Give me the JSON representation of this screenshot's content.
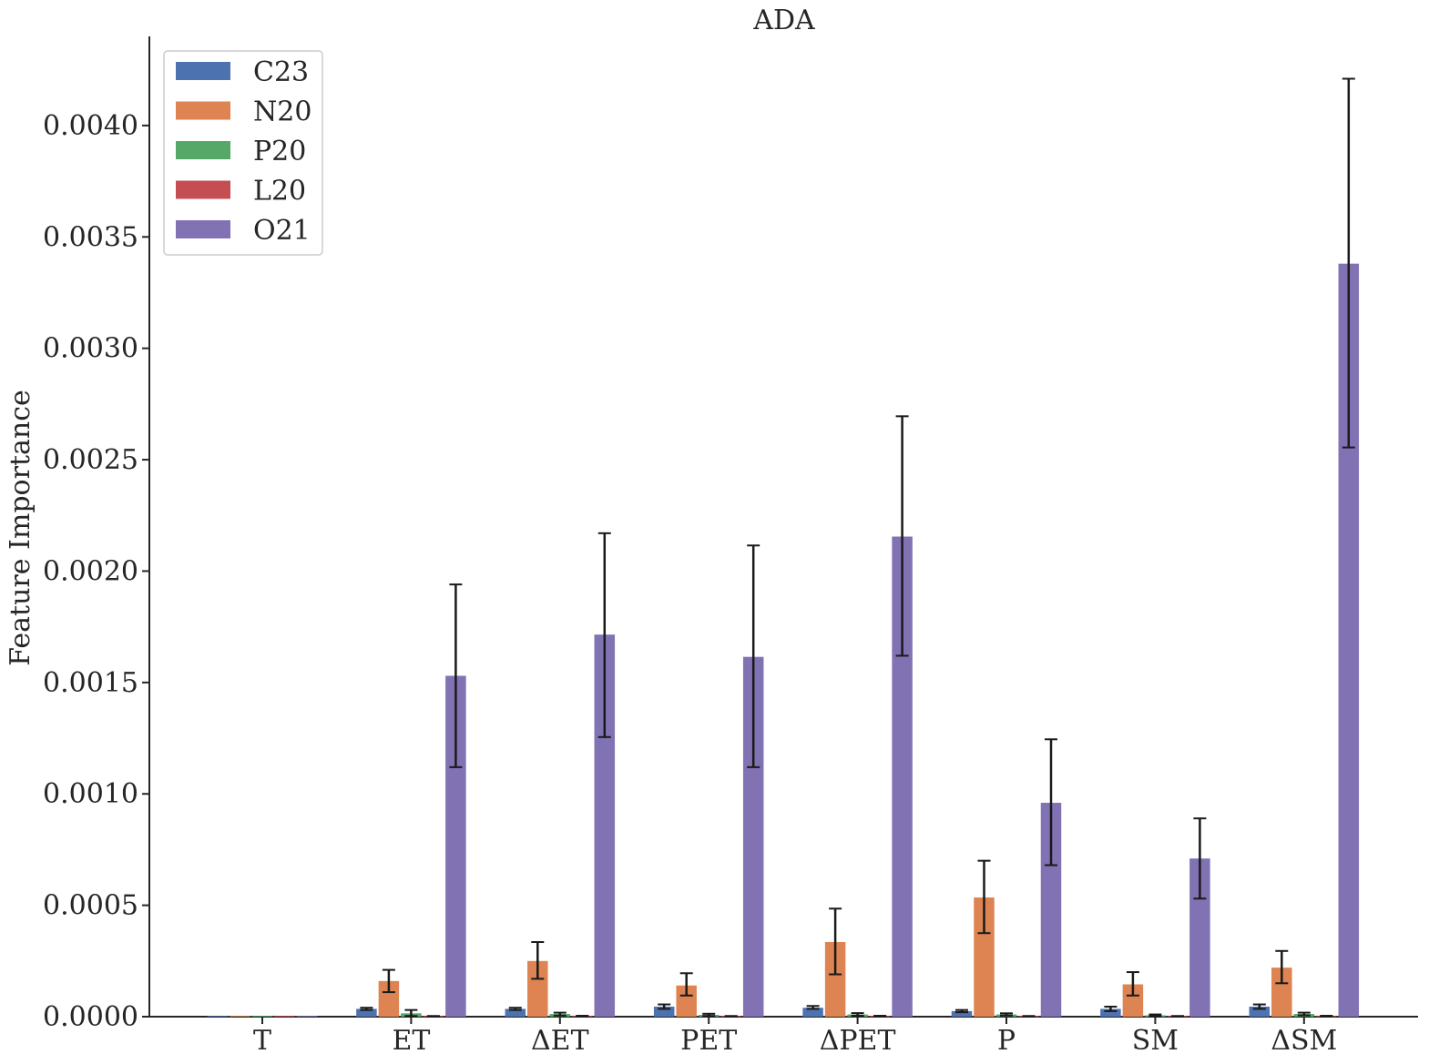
{
  "chart_data": {
    "type": "bar",
    "title": "ADA",
    "xlabel": "",
    "ylabel": "Feature Importance",
    "categories": [
      "T",
      "ET",
      "ΔET",
      "PET",
      "ΔPET",
      "P",
      "SM",
      "ΔSM"
    ],
    "ylim": [
      0,
      0.0044
    ],
    "yticks": [
      0.0,
      0.0005,
      0.001,
      0.0015,
      0.002,
      0.0025,
      0.003,
      0.0035,
      0.004
    ],
    "ytick_labels": [
      "0.0000",
      "0.0005",
      "0.0010",
      "0.0015",
      "0.0020",
      "0.0025",
      "0.0030",
      "0.0035",
      "0.0040"
    ],
    "grid": false,
    "legend_position": "top-left",
    "series": [
      {
        "name": "C23",
        "color": "#4c72b0",
        "values": [
          0.0,
          3.5e-05,
          3.5e-05,
          4.5e-05,
          4e-05,
          2.5e-05,
          3.5e-05,
          4.5e-05
        ],
        "err_low": [
          0.0,
          3e-05,
          3e-05,
          3.5e-05,
          3.5e-05,
          2e-05,
          2.5e-05,
          3.5e-05
        ],
        "err_high": [
          0.0,
          4e-05,
          4e-05,
          5.5e-05,
          4.8e-05,
          3e-05,
          4.5e-05,
          5.5e-05
        ]
      },
      {
        "name": "N20",
        "color": "#dd8452",
        "values": [
          0.0,
          0.00016,
          0.00025,
          0.00014,
          0.000335,
          0.000535,
          0.000145,
          0.00022
        ],
        "err_low": [
          0.0,
          0.00011,
          0.00017,
          9.5e-05,
          0.00019,
          0.000375,
          9.5e-05,
          0.00015
        ],
        "err_high": [
          0.0,
          0.00021,
          0.000335,
          0.000195,
          0.000485,
          0.0007,
          0.0002,
          0.000295
        ]
      },
      {
        "name": "P20",
        "color": "#55a868",
        "values": [
          0.0,
          1.5e-05,
          1.2e-05,
          8e-06,
          1e-05,
          1e-05,
          6e-06,
          1.2e-05
        ],
        "err_low": [
          0.0,
          3e-06,
          5e-06,
          3e-06,
          4e-06,
          5e-06,
          2e-06,
          6e-06
        ],
        "err_high": [
          0.0,
          3e-05,
          1.8e-05,
          1.3e-05,
          1.6e-05,
          1.5e-05,
          1e-05,
          1.8e-05
        ]
      },
      {
        "name": "L20",
        "color": "#c44e52",
        "values": [
          0.0,
          2e-06,
          3e-06,
          2e-06,
          3e-06,
          2e-06,
          2e-06,
          3e-06
        ],
        "err_low": [
          0.0,
          1e-06,
          2e-06,
          1e-06,
          2e-06,
          1e-06,
          1e-06,
          2e-06
        ],
        "err_high": [
          0.0,
          3e-06,
          4e-06,
          3e-06,
          4e-06,
          3e-06,
          3e-06,
          4e-06
        ]
      },
      {
        "name": "O21",
        "color": "#8172b3",
        "values": [
          0.0,
          0.00153,
          0.001715,
          0.001615,
          0.002155,
          0.00096,
          0.00071,
          0.00338
        ],
        "err_low": [
          0.0,
          0.00112,
          0.001255,
          0.00112,
          0.00162,
          0.00068,
          0.00053,
          0.002555
        ],
        "err_high": [
          0.0,
          0.00194,
          0.00217,
          0.002115,
          0.002695,
          0.001245,
          0.00089,
          0.00421
        ]
      }
    ]
  }
}
